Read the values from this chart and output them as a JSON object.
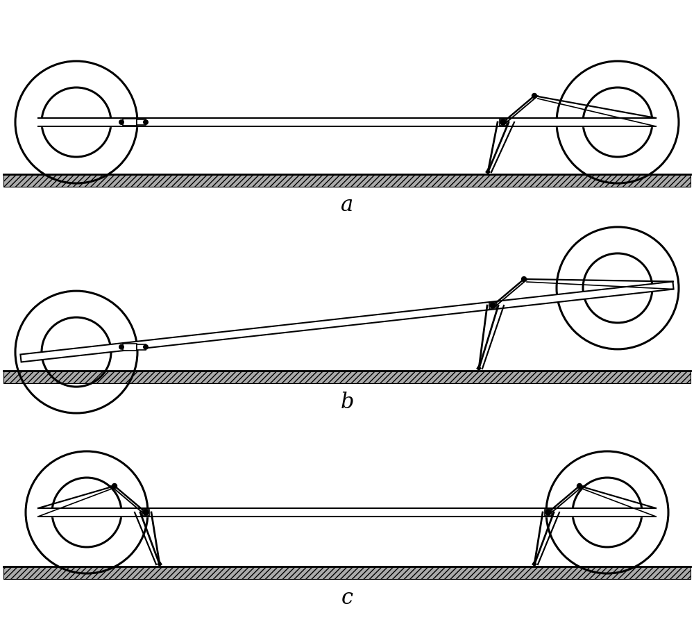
{
  "bg_color": "#ffffff",
  "line_color": "#000000",
  "label_fontsize": 22,
  "panels": [
    {
      "label": "a",
      "type": "horizontal_right"
    },
    {
      "label": "b",
      "type": "tilted_right"
    },
    {
      "label": "c",
      "type": "horizontal_both"
    }
  ]
}
